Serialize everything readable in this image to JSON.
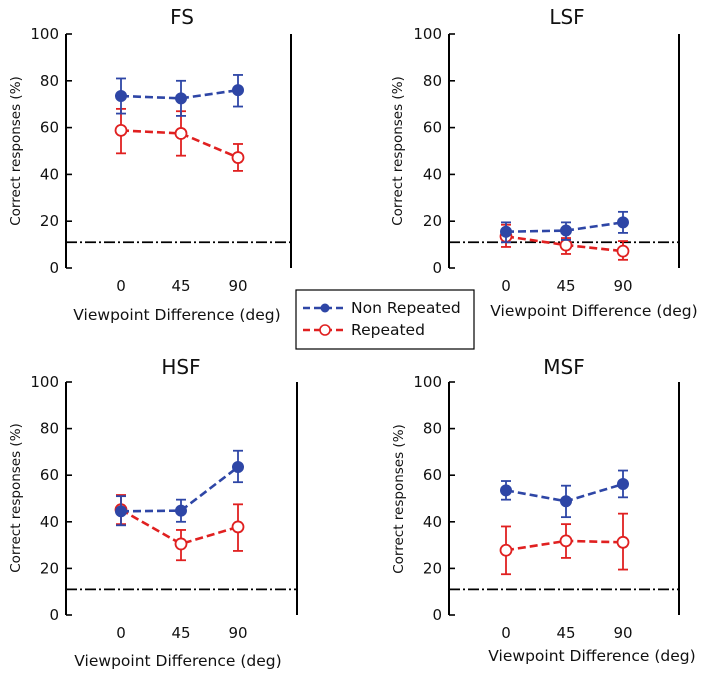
{
  "colors": {
    "non_repeated": "#2E46A6",
    "repeated": "#E02020",
    "axis": "#000000",
    "chance_line": "#000000"
  },
  "legend": {
    "items": [
      {
        "label": "Non Repeated",
        "series": "non_repeated",
        "marker": "filled-circle"
      },
      {
        "label": "Repeated",
        "series": "repeated",
        "marker": "open-circle"
      }
    ],
    "placement": "center"
  },
  "chart_data": [
    {
      "type": "line",
      "title": "FS",
      "xlabel": "Viewpoint Difference (deg)",
      "ylabel": "Correct responses (%)",
      "categories": [
        "0",
        "45",
        "90"
      ],
      "ylim": [
        0,
        100
      ],
      "yticks": [
        "0",
        "20",
        "40",
        "60",
        "80",
        "100"
      ],
      "chance_level": 11,
      "series": [
        {
          "name": "Non Repeated",
          "key": "non_repeated",
          "values": [
            73.5,
            72.5,
            76
          ],
          "err_low": [
            66,
            65,
            69
          ],
          "err_high": [
            81,
            80,
            82.5
          ]
        },
        {
          "name": "Repeated",
          "key": "repeated",
          "values": [
            58.8,
            57.5,
            47.2
          ],
          "err_low": [
            49,
            48,
            41.5
          ],
          "err_high": [
            68,
            67,
            53
          ]
        }
      ]
    },
    {
      "type": "line",
      "title": "LSF",
      "xlabel": "Viewpoint Difference (deg)",
      "ylabel": "Correct responses (%)",
      "categories": [
        "0",
        "45",
        "90"
      ],
      "ylim": [
        0,
        100
      ],
      "yticks": [
        "0",
        "20",
        "40",
        "60",
        "80",
        "100"
      ],
      "chance_level": 11,
      "series": [
        {
          "name": "Non Repeated",
          "key": "non_repeated",
          "values": [
            15.5,
            16,
            19.5
          ],
          "err_low": [
            11,
            12,
            15
          ],
          "err_high": [
            19.5,
            19.5,
            24
          ]
        },
        {
          "name": "Repeated",
          "key": "repeated",
          "values": [
            13.5,
            9.8,
            7.2
          ],
          "err_low": [
            9,
            6,
            3.5
          ],
          "err_high": [
            18.5,
            12.8,
            11.5
          ]
        }
      ]
    },
    {
      "type": "line",
      "title": "HSF",
      "xlabel": "Viewpoint Difference (deg)",
      "ylabel": "Correct responses (%)",
      "categories": [
        "0",
        "45",
        "90"
      ],
      "ylim": [
        0,
        100
      ],
      "yticks": [
        "0",
        "20",
        "40",
        "60",
        "80",
        "100"
      ],
      "chance_level": 11,
      "series": [
        {
          "name": "Non Repeated",
          "key": "non_repeated",
          "values": [
            44.5,
            44.8,
            63.5
          ],
          "err_low": [
            38.5,
            40,
            57
          ],
          "err_high": [
            51,
            49.5,
            70.5
          ]
        },
        {
          "name": "Repeated",
          "key": "repeated",
          "values": [
            45.2,
            30.5,
            37.8
          ],
          "err_low": [
            39,
            23.5,
            27.5
          ],
          "err_high": [
            51.5,
            36.5,
            47.5
          ]
        }
      ]
    },
    {
      "type": "line",
      "title": "MSF",
      "xlabel": "Viewpoint Difference (deg)",
      "ylabel": "Correct responses (%)",
      "categories": [
        "0",
        "45",
        "90"
      ],
      "ylim": [
        0,
        100
      ],
      "yticks": [
        "0",
        "20",
        "40",
        "60",
        "80",
        "100"
      ],
      "chance_level": 11,
      "series": [
        {
          "name": "Non Repeated",
          "key": "non_repeated",
          "values": [
            53.5,
            48.8,
            56.2
          ],
          "err_low": [
            49.5,
            42,
            50.5
          ],
          "err_high": [
            57.5,
            55.5,
            62
          ]
        },
        {
          "name": "Repeated",
          "key": "repeated",
          "values": [
            27.8,
            31.8,
            31.2
          ],
          "err_low": [
            17.5,
            24.5,
            19.5
          ],
          "err_high": [
            38,
            39,
            43.5
          ]
        }
      ]
    }
  ]
}
